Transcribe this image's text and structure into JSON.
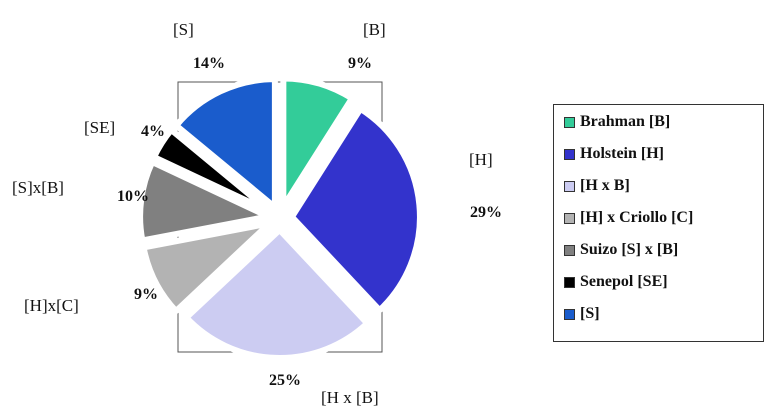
{
  "chart_data": {
    "type": "pie",
    "title": "",
    "slices": [
      {
        "code": "[B]",
        "percent_label": "9%",
        "value": 9,
        "color": "#33cc99"
      },
      {
        "code": "[H]",
        "percent_label": "29%",
        "value": 29,
        "color": "#3333cc"
      },
      {
        "code": "[H x [B]",
        "percent_label": "25%",
        "value": 25,
        "color": "#ccccf2"
      },
      {
        "code": "[H]x[C]",
        "percent_label": "9%",
        "value": 9,
        "color": "#b3b3b3"
      },
      {
        "code": "[S]x[B]",
        "percent_label": "10%",
        "value": 10,
        "color": "#808080"
      },
      {
        "code": "[SE]",
        "percent_label": "4%",
        "value": 4,
        "color": "#000000"
      },
      {
        "code": "[S]",
        "percent_label": "14%",
        "value": 14,
        "color": "#1a5ccc"
      }
    ],
    "legend": {
      "placement": "right",
      "entries": [
        {
          "label": "Brahman [B]",
          "color": "#33cc99"
        },
        {
          "label": "Holstein [H]",
          "color": "#3333cc"
        },
        {
          "label": "[H x B]",
          "color": "#ccccf2"
        },
        {
          "label": "[H] x Criollo [C]",
          "color": "#b3b3b3"
        },
        {
          "label": "Suizo [S] x [B]",
          "color": "#808080"
        },
        {
          "label": "Senepol [SE]",
          "color": "#000000"
        },
        {
          "label": "[S]",
          "color": "#1a5ccc"
        }
      ]
    }
  }
}
